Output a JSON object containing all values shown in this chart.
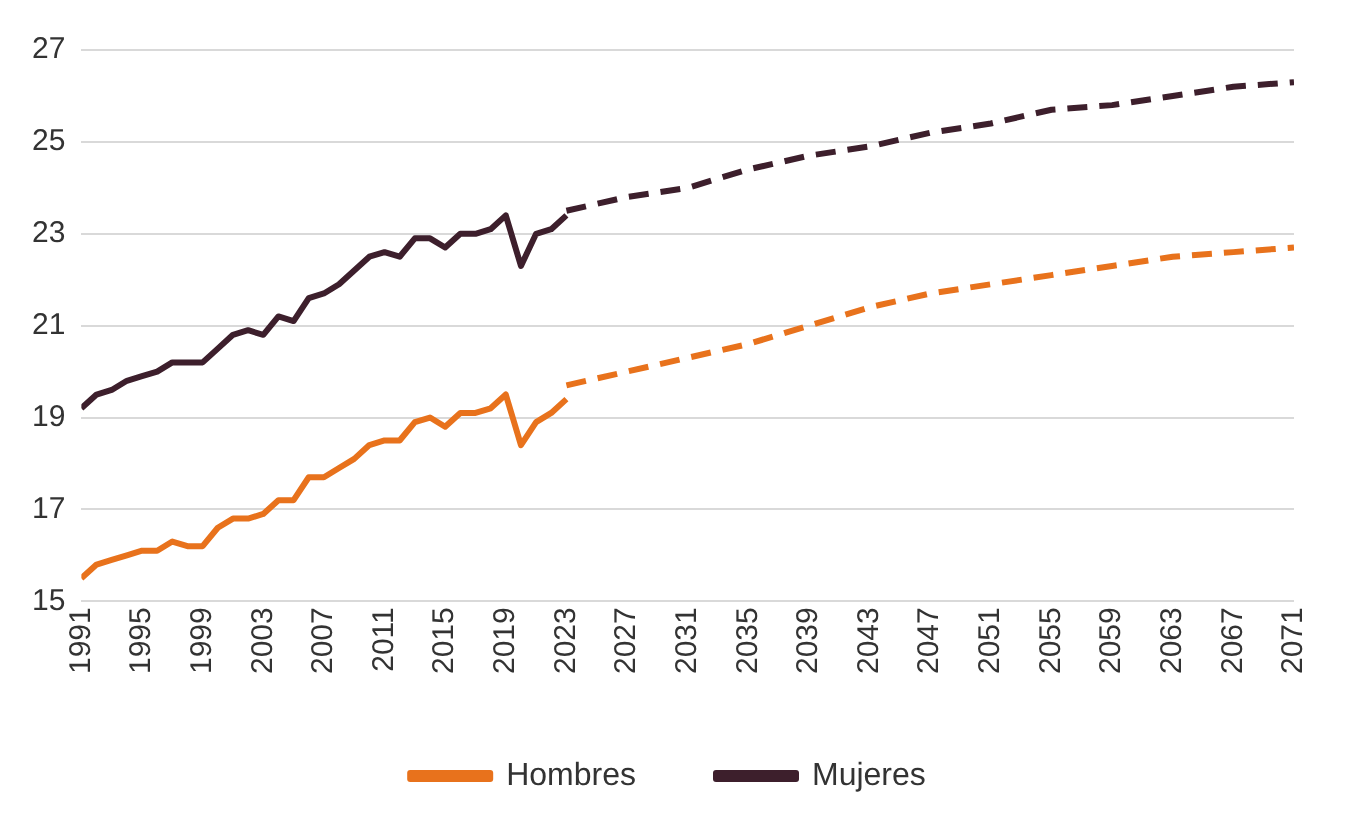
{
  "chart_data": {
    "type": "line",
    "legend": "bottom",
    "grid": "y",
    "xlim": [
      1991,
      2071
    ],
    "xticks": [
      1991,
      1995,
      1999,
      2003,
      2007,
      2011,
      2015,
      2019,
      2023,
      2027,
      2031,
      2035,
      2039,
      2043,
      2047,
      2051,
      2055,
      2059,
      2063,
      2067,
      2071
    ],
    "ylim": [
      15,
      27
    ],
    "yticks": [
      15,
      17,
      19,
      21,
      23,
      25,
      27
    ],
    "marker": "none",
    "series": [
      {
        "name": "Hombres",
        "color": "#e8721c",
        "line_style": "solid",
        "x": [
          1991,
          1992,
          1993,
          1994,
          1995,
          1996,
          1997,
          1998,
          1999,
          2000,
          2001,
          2002,
          2003,
          2004,
          2005,
          2006,
          2007,
          2008,
          2009,
          2010,
          2011,
          2012,
          2013,
          2014,
          2015,
          2016,
          2017,
          2018,
          2019,
          2020,
          2021,
          2022,
          2023
        ],
        "values": [
          15.5,
          15.8,
          15.9,
          16.0,
          16.1,
          16.1,
          16.3,
          16.2,
          16.2,
          16.6,
          16.8,
          16.8,
          16.9,
          17.2,
          17.2,
          17.7,
          17.7,
          17.9,
          18.1,
          18.4,
          18.5,
          18.5,
          18.9,
          19.0,
          18.8,
          19.1,
          19.1,
          19.2,
          19.5,
          18.4,
          18.9,
          19.1,
          19.4
        ]
      },
      {
        "name": "Mujeres",
        "color": "#3d1f2c",
        "line_style": "solid",
        "x": [
          1991,
          1992,
          1993,
          1994,
          1995,
          1996,
          1997,
          1998,
          1999,
          2000,
          2001,
          2002,
          2003,
          2004,
          2005,
          2006,
          2007,
          2008,
          2009,
          2010,
          2011,
          2012,
          2013,
          2014,
          2015,
          2016,
          2017,
          2018,
          2019,
          2020,
          2021,
          2022,
          2023
        ],
        "values": [
          19.2,
          19.5,
          19.6,
          19.8,
          19.9,
          20.0,
          20.2,
          20.2,
          20.2,
          20.5,
          20.8,
          20.9,
          20.8,
          21.2,
          21.1,
          21.6,
          21.7,
          21.9,
          22.2,
          22.5,
          22.6,
          22.5,
          22.9,
          22.9,
          22.7,
          23.0,
          23.0,
          23.1,
          23.4,
          22.3,
          23.0,
          23.1,
          23.4
        ]
      },
      {
        "color": "#e8721c",
        "line_style": "dashed",
        "x": [
          2023,
          2027,
          2031,
          2035,
          2039,
          2043,
          2047,
          2051,
          2055,
          2059,
          2063,
          2067,
          2071
        ],
        "values": [
          19.7,
          20.0,
          20.3,
          20.6,
          21.0,
          21.4,
          21.7,
          21.9,
          22.1,
          22.3,
          22.5,
          22.6,
          22.7
        ]
      },
      {
        "color": "#3d1f2c",
        "line_style": "dashed",
        "x": [
          2023,
          2027,
          2031,
          2035,
          2039,
          2043,
          2047,
          2051,
          2055,
          2059,
          2063,
          2067,
          2071
        ],
        "values": [
          23.5,
          23.8,
          24.0,
          24.4,
          24.7,
          24.9,
          25.2,
          25.4,
          25.7,
          25.8,
          26.0,
          26.2,
          26.3
        ]
      }
    ]
  }
}
